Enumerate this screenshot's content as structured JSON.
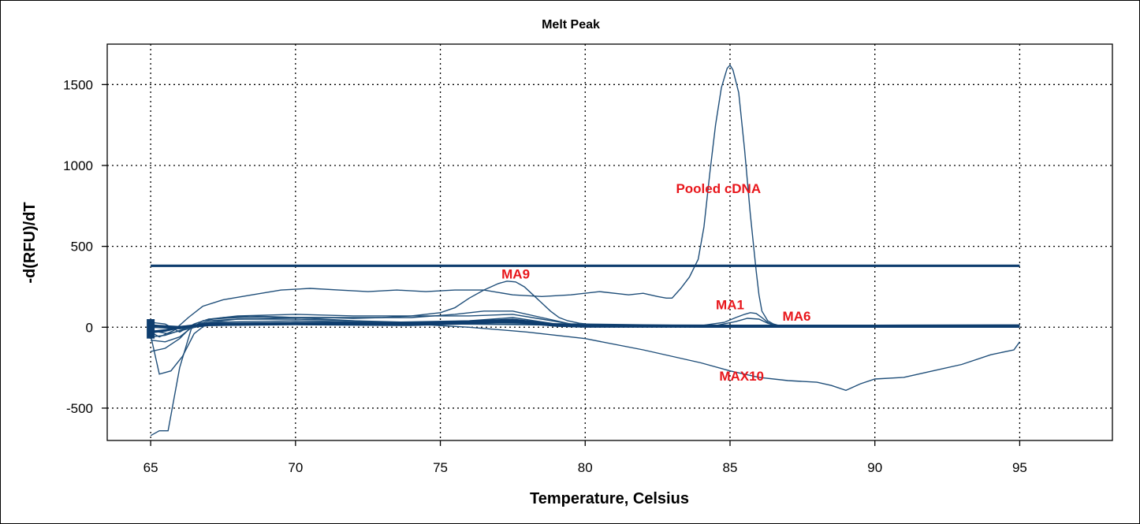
{
  "chart_data": {
    "type": "line",
    "title": "Melt Peak",
    "xlabel": "Temperature, Celsius",
    "ylabel": "-d(RFU)/dT",
    "xlim": [
      63.5,
      98.2
    ],
    "ylim": [
      -700,
      1750
    ],
    "xticks": [
      65,
      70,
      75,
      80,
      85,
      90,
      95
    ],
    "yticks": [
      -500,
      0,
      500,
      1000,
      1500
    ],
    "grid": true,
    "line_color": "#1f4e79",
    "annotation_color": "#e8161b",
    "annotations": [
      {
        "text": "Pooled cDNA",
        "x": 84.6,
        "y": 830
      },
      {
        "text": "MA9",
        "x": 77.6,
        "y": 300
      },
      {
        "text": "MA1",
        "x": 85.0,
        "y": 110
      },
      {
        "text": "MA6",
        "x": 87.3,
        "y": 40
      },
      {
        "text": "MAX10",
        "x": 85.4,
        "y": -330
      }
    ],
    "series": [
      {
        "name": "Pooled cDNA",
        "x": [
          65.0,
          65.3,
          65.8,
          66.3,
          66.8,
          67.5,
          68.5,
          69.5,
          70.5,
          71.5,
          72.5,
          73.5,
          74.5,
          75.5,
          76.5,
          77.5,
          78.5,
          79.5,
          80.5,
          81.5,
          82.0,
          82.5,
          82.8,
          83.0,
          83.3,
          83.6,
          83.9,
          84.1,
          84.3,
          84.5,
          84.7,
          84.9,
          85.0,
          85.1,
          85.3,
          85.5,
          85.7,
          85.9,
          86.0,
          86.1,
          86.3,
          86.5,
          86.7,
          87.0,
          88.0,
          90.0,
          92.0,
          94.0,
          95.0
        ],
        "y": [
          -30,
          -60,
          -20,
          60,
          130,
          170,
          200,
          230,
          240,
          230,
          220,
          230,
          220,
          230,
          230,
          200,
          190,
          200,
          220,
          200,
          210,
          190,
          180,
          180,
          240,
          310,
          420,
          620,
          950,
          1250,
          1480,
          1600,
          1620,
          1590,
          1450,
          1100,
          700,
          350,
          200,
          100,
          40,
          20,
          10,
          5,
          0,
          0,
          0,
          0,
          0
        ]
      },
      {
        "name": "MA9",
        "x": [
          65.0,
          65.5,
          66.0,
          66.5,
          67.0,
          68.0,
          69.0,
          70.0,
          71.0,
          72.0,
          73.0,
          74.0,
          75.0,
          75.5,
          76.0,
          76.5,
          77.0,
          77.3,
          77.6,
          77.9,
          78.2,
          78.5,
          78.8,
          79.1,
          79.4,
          79.8,
          80.3,
          81.0,
          82.0,
          84.0,
          86.0,
          90.0,
          95.0
        ],
        "y": [
          -150,
          -130,
          -70,
          20,
          50,
          60,
          65,
          60,
          60,
          55,
          60,
          70,
          90,
          120,
          180,
          230,
          270,
          285,
          280,
          250,
          200,
          150,
          100,
          60,
          40,
          25,
          15,
          10,
          5,
          0,
          0,
          0,
          0
        ]
      },
      {
        "name": "MA1",
        "x": [
          65.0,
          65.6,
          66.3,
          67.0,
          70.0,
          75.0,
          80.0,
          84.0,
          84.8,
          85.2,
          85.5,
          85.7,
          85.9,
          86.1,
          86.3,
          86.6,
          87.0,
          90.0,
          95.0
        ],
        "y": [
          -20,
          -40,
          -10,
          20,
          30,
          30,
          20,
          10,
          30,
          60,
          80,
          90,
          85,
          60,
          30,
          10,
          5,
          0,
          0
        ]
      },
      {
        "name": "MA6",
        "x": [
          65.0,
          66.0,
          67.0,
          70.0,
          75.0,
          80.0,
          84.5,
          85.2,
          85.6,
          86.0,
          86.3,
          86.6,
          87.0,
          90.0,
          95.0
        ],
        "y": [
          0,
          -10,
          10,
          20,
          20,
          15,
          10,
          35,
          55,
          50,
          25,
          8,
          3,
          0,
          0
        ]
      },
      {
        "name": "MAX10",
        "x": [
          65.0,
          65.3,
          65.6,
          66.0,
          66.4,
          66.8,
          67.5,
          68.5,
          70.0,
          72.0,
          74.0,
          76.0,
          78.0,
          80.0,
          82.0,
          84.0,
          85.0,
          86.0,
          87.0,
          88.0,
          88.5,
          89.0,
          89.5,
          90.0,
          91.0,
          92.0,
          93.0,
          94.0,
          94.8,
          95.0
        ],
        "y": [
          -670,
          -640,
          -640,
          -250,
          -10,
          40,
          60,
          70,
          60,
          40,
          20,
          0,
          -30,
          -70,
          -140,
          -220,
          -270,
          -310,
          -330,
          -340,
          -360,
          -390,
          -350,
          -320,
          -310,
          -270,
          -230,
          -170,
          -140,
          -90
        ]
      },
      {
        "name": "",
        "x": [
          65.0,
          65.3,
          65.7,
          66.1,
          66.5,
          67.0,
          68.0,
          70.0,
          72.0,
          74.0,
          76.0,
          78.0,
          80.0,
          85.0,
          90.0,
          95.0
        ],
        "y": [
          -50,
          -290,
          -270,
          -180,
          -40,
          30,
          50,
          50,
          40,
          30,
          20,
          15,
          10,
          5,
          0,
          0
        ]
      },
      {
        "name": "",
        "x": [
          65.0,
          65.5,
          66.0,
          66.5,
          67.0,
          68.0,
          70.0,
          72.0,
          74.0,
          75.5,
          76.5,
          77.5,
          78.5,
          79.5,
          80.0,
          85.0,
          95.0
        ],
        "y": [
          -80,
          -90,
          -60,
          10,
          40,
          50,
          60,
          60,
          60,
          80,
          100,
          100,
          60,
          20,
          10,
          5,
          0
        ]
      },
      {
        "name": "",
        "x": [
          65.0,
          65.5,
          66.0,
          66.5,
          67.0,
          68.0,
          70.0,
          72.0,
          74.0,
          76.0,
          77.5,
          78.5,
          79.5,
          80.0,
          85.0,
          95.0
        ],
        "y": [
          30,
          20,
          -30,
          20,
          50,
          70,
          80,
          70,
          70,
          70,
          80,
          50,
          20,
          10,
          5,
          0
        ]
      },
      {
        "name": "",
        "x": [
          65.0,
          65.5,
          66.0,
          66.5,
          67.0,
          70.0,
          73.0,
          76.0,
          77.5,
          79.0,
          80.0,
          95.0
        ],
        "y": [
          -60,
          -50,
          -20,
          10,
          30,
          40,
          30,
          40,
          60,
          20,
          10,
          0
        ]
      },
      {
        "name": "",
        "x": [
          65.0,
          66.0,
          67.0,
          70.0,
          73.0,
          76.0,
          77.5,
          79.0,
          80.0,
          95.0
        ],
        "y": [
          10,
          0,
          20,
          30,
          20,
          30,
          40,
          15,
          5,
          0
        ]
      }
    ],
    "thick_series": [
      {
        "name": "",
        "x": [
          65.0,
          95.0
        ],
        "y": [
          380,
          380
        ]
      },
      {
        "name": "",
        "x": [
          65.0,
          65.5,
          66.0,
          67.0,
          70.0,
          74.0,
          76.0,
          77.5,
          79.0,
          80.0,
          85.0,
          90.0,
          95.0
        ],
        "y": [
          -30,
          -20,
          0,
          20,
          25,
          25,
          35,
          45,
          15,
          10,
          8,
          8,
          10
        ]
      },
      {
        "name": "",
        "x": [
          65.0,
          66.0,
          67.0,
          70.0,
          74.0,
          76.0,
          77.5,
          79.0,
          80.0,
          85.0,
          90.0,
          95.0
        ],
        "y": [
          10,
          0,
          15,
          20,
          15,
          25,
          35,
          10,
          5,
          5,
          5,
          5
        ]
      }
    ]
  }
}
